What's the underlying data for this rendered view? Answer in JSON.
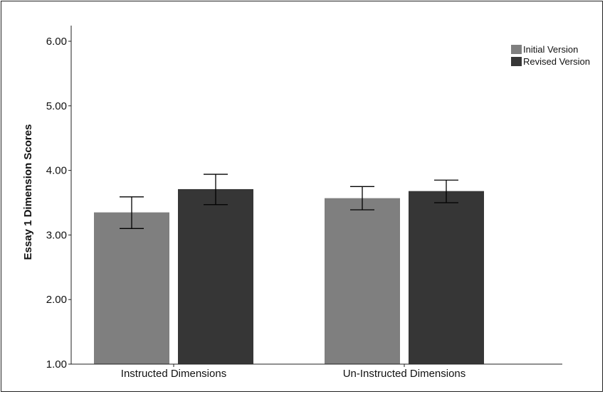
{
  "chart_data": {
    "type": "bar",
    "title": "",
    "xlabel": "",
    "ylabel": "Essay 1 Dimension Scores",
    "ylim": [
      1.0,
      6.2
    ],
    "yticks": [
      "1.00",
      "2.00",
      "3.00",
      "4.00",
      "5.00",
      "6.00"
    ],
    "ytick_values": [
      1,
      2,
      3,
      4,
      5,
      6
    ],
    "categories": [
      "Instructed Dimensions",
      "Un-Instructed Dimensions"
    ],
    "series": [
      {
        "name": "Initial Version",
        "color": "#7f7f7f",
        "values": [
          3.35,
          3.57
        ],
        "error_low": [
          3.1,
          3.39
        ],
        "error_high": [
          3.59,
          3.75
        ]
      },
      {
        "name": "Revised Version",
        "color": "#363636",
        "values": [
          3.71,
          3.68
        ],
        "error_low": [
          3.47,
          3.5
        ],
        "error_high": [
          3.94,
          3.85
        ]
      }
    ],
    "grid": false,
    "legend_position": "top-right"
  }
}
